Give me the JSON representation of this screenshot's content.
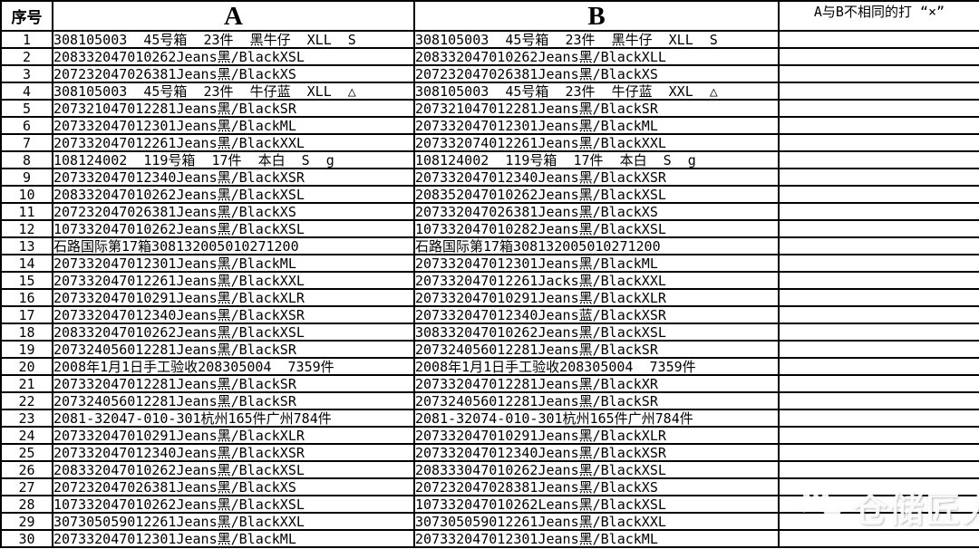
{
  "table": {
    "headers": {
      "index": "序号",
      "a": "A",
      "b": "B",
      "mark": "A与B不相同的打 “×”"
    },
    "rows": [
      {
        "n": "1",
        "a": "308105003  45号箱  23件  黑牛仔  XLL  S",
        "b": "308105003  45号箱  23件  黑牛仔  XLL  S",
        "mark": "",
        "highlight": false
      },
      {
        "n": "2",
        "a": "208332047010262Jeans黑/BlackXSL",
        "b": "208332047010262Jeans黑/BlackXLL",
        "mark": "",
        "highlight": true
      },
      {
        "n": "3",
        "a": "207232047026381Jeans黑/BlackXS",
        "b": "207232047026381Jeans黑/BlackXS",
        "mark": "",
        "highlight": false
      },
      {
        "n": "4",
        "a": "308105003  45号箱  23件  牛仔蓝  XLL  △",
        "b": "308105003  45号箱  23件  牛仔蓝  XXL  △",
        "mark": "",
        "highlight": true
      },
      {
        "n": "5",
        "a": "207321047012281Jeans黑/BlackSR",
        "b": "207321047012281Jeans黑/BlackSR",
        "mark": "",
        "highlight": false
      },
      {
        "n": "6",
        "a": "207332047012301Jeans黑/BlackML",
        "b": "207332047012301Jeans黑/BlackML",
        "mark": "",
        "highlight": false
      },
      {
        "n": "7",
        "a": "207332047012261Jeans黑/BlackXXL",
        "b": "207332074012261Jeans黑/BlackXXL",
        "mark": "",
        "highlight": true
      },
      {
        "n": "8",
        "a": "108124002  119号箱  17件  本白  S  g",
        "b": "108124002  119号箱  17件  本白  S  g",
        "mark": "",
        "highlight": false
      },
      {
        "n": "9",
        "a": "207332047012340Jeans黑/BlackXSR",
        "b": "207332047012340Jeans黑/BlackXSR",
        "mark": "",
        "highlight": false
      },
      {
        "n": "10",
        "a": "208332047010262Jeans黑/BlackXSL",
        "b": "208352047010262Jeans黑/BlackXSL",
        "mark": "",
        "highlight": true
      },
      {
        "n": "11",
        "a": "207232047026381Jeans黑/BlackXS",
        "b": "207332047026381Jeans黑/BlackXS",
        "mark": "",
        "highlight": true
      },
      {
        "n": "12",
        "a": "107332047010262Jeans黑/BlackXSL",
        "b": "107332047010282Jeans黑/BlackXSL",
        "mark": "",
        "highlight": true
      },
      {
        "n": "13",
        "a": "石路国际第17箱308132005010271200",
        "b": "石路国际第17箱308132005010271200",
        "mark": "",
        "highlight": false
      },
      {
        "n": "14",
        "a": "207332047012301Jeans黑/BlackML",
        "b": "207332047012301Jeans黑/BlackML",
        "mark": "",
        "highlight": false
      },
      {
        "n": "15",
        "a": "207332047012261Jeans黑/BlackXXL",
        "b": "207332047012261Jacks黑/BlackXXL",
        "mark": "",
        "highlight": true
      },
      {
        "n": "16",
        "a": "207332047010291Jeans黑/BlackXLR",
        "b": "207332047010291Jeans黑/BlackXLR",
        "mark": "",
        "highlight": false
      },
      {
        "n": "17",
        "a": "207332047012340Jeans黑/BlackXSR",
        "b": "207332047012340Jeans蓝/BlackXSR",
        "mark": "",
        "highlight": true
      },
      {
        "n": "18",
        "a": "208332047010262Jeans黑/BlackXSL",
        "b": "308332047010262Jeans黑/BlackXSL",
        "mark": "",
        "highlight": true
      },
      {
        "n": "19",
        "a": "207324056012281Jeans黑/BlackSR",
        "b": "207324056012281Jeans黑/BlackSR",
        "mark": "",
        "highlight": false
      },
      {
        "n": "20",
        "a": "2008年1月1日手工验收208305004  7359件",
        "b": "2008年1月1日手工验收208305004  7359件",
        "mark": "",
        "highlight": false
      },
      {
        "n": "21",
        "a": "207332047012281Jeans黑/BlackSR",
        "b": "207332047012281Jeans黑/BlackXR",
        "mark": "",
        "highlight": true
      },
      {
        "n": "22",
        "a": "207324056012281Jeans黑/BlackSR",
        "b": "207324056012281Jeans黑/BlackSR",
        "mark": "",
        "highlight": false
      },
      {
        "n": "23",
        "a": "2081-32047-010-301杭州165件广州784件",
        "b": "2081-32074-010-301杭州165件广州784件",
        "mark": "",
        "highlight": true
      },
      {
        "n": "24",
        "a": "207332047010291Jeans黑/BlackXLR",
        "b": "207332047010291Jeans黑/BlackXLR",
        "mark": "",
        "highlight": false
      },
      {
        "n": "25",
        "a": "207332047012340Jeans黑/BlackXSR",
        "b": "207332047012340Jeans黑/BlackXSR",
        "mark": "",
        "highlight": false
      },
      {
        "n": "26",
        "a": "208332047010262Jeans黑/BlackXSL",
        "b": "208333047010262Jeans黑/BlackXSL",
        "mark": "",
        "highlight": true
      },
      {
        "n": "27",
        "a": "207232047026381Jeans黑/BlackXS",
        "b": "207232047028381Jeans黑/BlackXS",
        "mark": "",
        "highlight": true
      },
      {
        "n": "28",
        "a": "107332047010262Jeans黑/BlackXSL",
        "b": "107332047010262Leans黑/BlackXSL",
        "mark": "",
        "highlight": true
      },
      {
        "n": "29",
        "a": "307305059012261Jeans黑/BlackXXL",
        "b": "307305059012261Jeans黑/BlackXXL",
        "mark": "",
        "highlight": false
      },
      {
        "n": "30",
        "a": "207332047012301Jeans黑/BlackML",
        "b": "207332047012301Jeans黑/BlackML",
        "mark": "",
        "highlight": false
      }
    ]
  },
  "watermark": {
    "text": "仓储匠人",
    "icon": "wechat-icon"
  },
  "colors": {
    "highlight": "#FFFF00",
    "grid": "#000000",
    "text": "#000000"
  }
}
